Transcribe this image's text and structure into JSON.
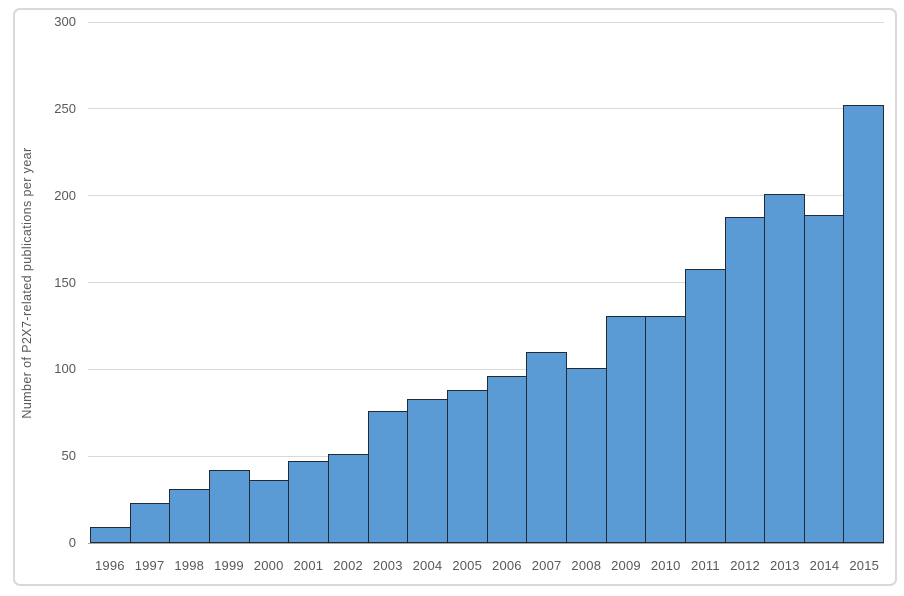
{
  "chart_data": {
    "type": "bar",
    "title": "",
    "xlabel": "",
    "ylabel": "Number of P2X7-related publications per year",
    "categories": [
      "1996",
      "1997",
      "1998",
      "1999",
      "2000",
      "2001",
      "2002",
      "2003",
      "2004",
      "2005",
      "2006",
      "2007",
      "2008",
      "2009",
      "2010",
      "2011",
      "2012",
      "2013",
      "2014",
      "2015"
    ],
    "values": [
      9,
      23,
      31,
      42,
      36,
      47,
      51,
      76,
      83,
      88,
      96,
      110,
      101,
      131,
      131,
      158,
      188,
      201,
      189,
      252
    ],
    "ylim": [
      0,
      300
    ],
    "yticks": [
      0,
      50,
      100,
      150,
      200,
      250,
      300
    ],
    "grid": "horizontal",
    "legend": "none",
    "bar_gap": 0
  },
  "colors": {
    "bar_fill": "#5B9BD5",
    "bar_border": "#222B35",
    "gridline": "#D9D9D9",
    "axis_line": "#A6A6A6",
    "text": "#595959",
    "frame_border": "#D9D9D9",
    "background": "#FFFFFF"
  }
}
